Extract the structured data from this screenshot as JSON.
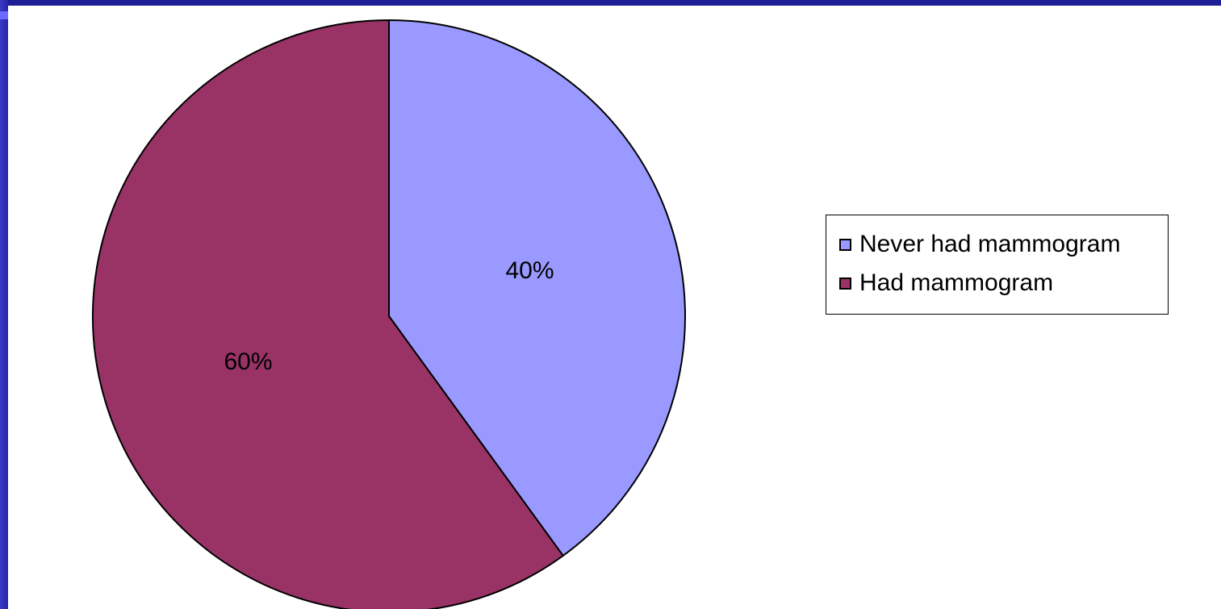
{
  "chart_data": {
    "type": "pie",
    "title": "",
    "slices": [
      {
        "label": "Never had mammogram",
        "value": 40,
        "display": "40%",
        "color": "#9999ff"
      },
      {
        "label": "Had mammogram",
        "value": 60,
        "display": "60%",
        "color": "#993366"
      }
    ],
    "legend_placement": "right"
  },
  "legend": {
    "items": [
      {
        "label": "Never had mammogram",
        "color": "#9999ff"
      },
      {
        "label": "Had mammogram",
        "color": "#993366"
      }
    ]
  },
  "colors": {
    "background": "#1a1a8c",
    "plot_area": "#ffffff",
    "outline": "#000000"
  }
}
